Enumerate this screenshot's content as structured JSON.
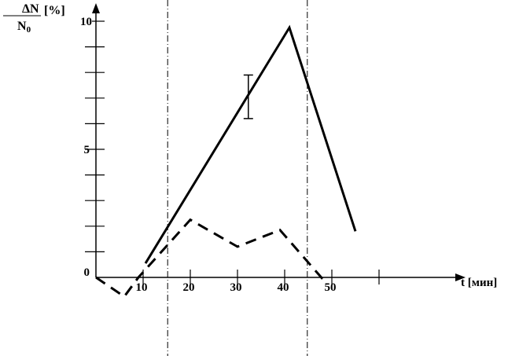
{
  "chart_data": {
    "type": "line",
    "ylabel_numerator": "ΔN",
    "ylabel_denominator": "N",
    "ylabel_denominator_sub": "0",
    "ylabel_unit": "[%]",
    "xlabel": "t [мин]",
    "xlim": [
      0,
      60
    ],
    "ylim": [
      0,
      10
    ],
    "x_ticks": [
      10,
      20,
      30,
      40,
      50,
      60
    ],
    "x_tick_labels": [
      "10",
      "20",
      "30",
      "40",
      "50",
      ""
    ],
    "y_ticks": [
      0,
      1,
      2,
      3,
      4,
      5,
      6,
      7,
      8,
      9,
      10
    ],
    "y_tick_labels": {
      "0": "0",
      "5": "5",
      "10": "10"
    },
    "grid": false,
    "series": [
      {
        "style": "solid",
        "points": [
          [
            10.5,
            0.55
          ],
          [
            41,
            9.75
          ],
          [
            55,
            1.8
          ]
        ]
      },
      {
        "style": "dashed",
        "points": [
          [
            0,
            0
          ],
          [
            6,
            -0.75
          ],
          [
            9,
            0
          ],
          [
            20,
            2.25
          ],
          [
            30,
            1.2
          ],
          [
            39,
            1.85
          ],
          [
            48,
            -0.05
          ],
          [
            49,
            -0.2
          ]
        ]
      }
    ],
    "error_bar": {
      "x": 32.3,
      "low": 6.2,
      "high": 7.9
    },
    "vertical_lines": [
      15.2,
      44.8
    ],
    "color": "#000000"
  }
}
